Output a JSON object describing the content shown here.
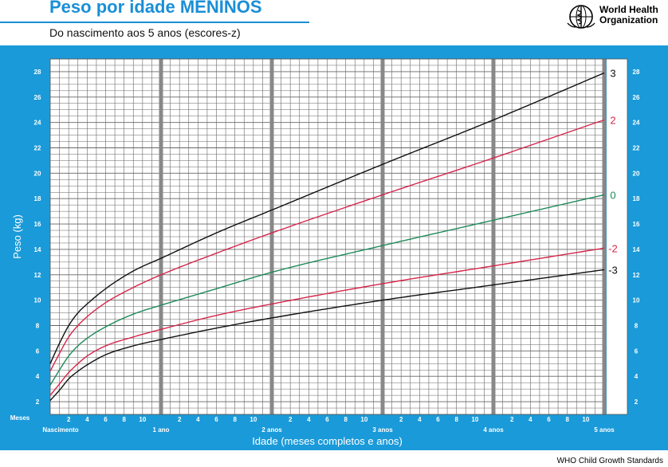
{
  "header": {
    "title": "Peso por idade MENINOS",
    "subtitle": "Do nascimento aos 5 anos (escores-z)",
    "organization": "World Health Organization"
  },
  "footer": {
    "text": "WHO Child Growth Standards"
  },
  "colors": {
    "frame": "#1a9ad9",
    "grid_bg": "#ffffff",
    "grid_minor": "#666666",
    "grid_year": "#888888",
    "z3": "#111111",
    "z2": "#d6254a",
    "z0": "#1d8a5a",
    "zm2": "#d6254a",
    "zm3": "#111111"
  },
  "chart_data": {
    "type": "line",
    "xlabel": "Idade (meses completos e anos)",
    "ylabel": "Peso (kg)",
    "xlim": [
      0,
      60
    ],
    "ylim": [
      1,
      29
    ],
    "y_ticks": [
      2,
      4,
      6,
      8,
      10,
      12,
      14,
      16,
      18,
      20,
      22,
      24,
      26,
      28
    ],
    "x_month_prefix": "Meses",
    "x_month_ticks": [
      "2",
      "4",
      "6",
      "8",
      "10"
    ],
    "x_year_labels": [
      "Nascimento",
      "1 ano",
      "2 anos",
      "3 anos",
      "4 anos",
      "5 anos"
    ],
    "grid": true,
    "series": [
      {
        "name": "3",
        "color_key": "z3",
        "x": [
          0,
          1,
          2,
          3,
          4,
          6,
          9,
          12,
          18,
          24,
          36,
          48,
          60
        ],
        "y": [
          5.0,
          6.6,
          8.0,
          9.0,
          9.7,
          10.9,
          12.3,
          13.3,
          15.3,
          17.1,
          20.7,
          24.2,
          27.9
        ]
      },
      {
        "name": "2",
        "color_key": "z2",
        "x": [
          0,
          1,
          2,
          3,
          4,
          6,
          9,
          12,
          18,
          24,
          36,
          48,
          60
        ],
        "y": [
          4.4,
          5.8,
          7.1,
          8.0,
          8.7,
          9.8,
          11.0,
          12.0,
          13.7,
          15.3,
          18.3,
          21.2,
          24.2
        ]
      },
      {
        "name": "0",
        "color_key": "z0",
        "x": [
          0,
          1,
          2,
          3,
          4,
          6,
          9,
          12,
          18,
          24,
          36,
          48,
          60
        ],
        "y": [
          3.3,
          4.5,
          5.6,
          6.4,
          7.0,
          7.9,
          8.9,
          9.6,
          10.9,
          12.2,
          14.3,
          16.3,
          18.3
        ]
      },
      {
        "name": "-2",
        "color_key": "zm2",
        "x": [
          0,
          1,
          2,
          3,
          4,
          6,
          9,
          12,
          18,
          24,
          36,
          48,
          60
        ],
        "y": [
          2.5,
          3.4,
          4.3,
          5.0,
          5.6,
          6.4,
          7.1,
          7.7,
          8.8,
          9.7,
          11.3,
          12.7,
          14.1
        ]
      },
      {
        "name": "-3",
        "color_key": "zm3",
        "x": [
          0,
          1,
          2,
          3,
          4,
          6,
          9,
          12,
          18,
          24,
          36,
          48,
          60
        ],
        "y": [
          2.1,
          2.9,
          3.8,
          4.4,
          4.9,
          5.7,
          6.4,
          6.9,
          7.8,
          8.6,
          10.0,
          11.2,
          12.4
        ]
      }
    ]
  }
}
